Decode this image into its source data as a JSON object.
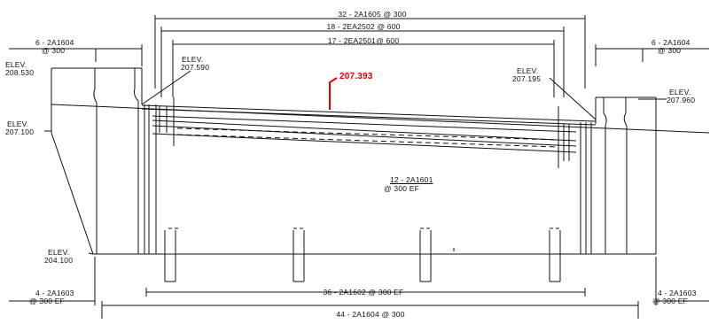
{
  "annotations": {
    "top_dim_1": "32 - 2A1605 @ 300",
    "top_dim_2": "18 - 2EA2502 @ 600",
    "top_dim_3": "17 - 2EA2501@ 600",
    "left_top_bar": "6 - 2A1604",
    "left_top_spacing": "@ 300",
    "right_top_bar": "6 - 2A1604",
    "right_top_spacing": "@ 300",
    "elev_word": "ELEV.",
    "elev_left_top": "208.530",
    "elev_left_mid": "207.100",
    "elev_left_bottom": "204.100",
    "elev_slab_left": "207.590",
    "elev_slab_right": "207.195",
    "elev_right_top": "207.960",
    "marked_elevation": "207.393",
    "center_bar": "12 - 2A1601",
    "center_spacing": "@ 300 EF",
    "bottom_dim_1": "36 - 2A1602 @ 300 EF",
    "bottom_dim_2": "44 - 2A1604 @ 300",
    "left_bottom_bar": "4 - 2A1603",
    "left_bottom_spacing": "@ 300 EF",
    "right_bottom_bar": "4 - 2A1603",
    "right_bottom_spacing": "@ 300 EF"
  },
  "colors": {
    "line": "#111111",
    "markup": "#e00000"
  }
}
